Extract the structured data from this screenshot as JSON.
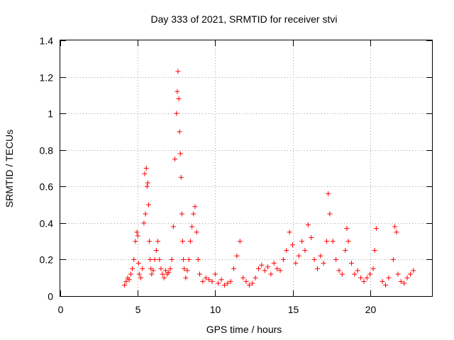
{
  "chart_data": {
    "type": "scatter",
    "title": "Day 333 of 2021, SRMTID for receiver stvi",
    "xlabel": "GPS time / hours",
    "ylabel": "SRMTID / TECUs",
    "xlim": [
      0,
      24
    ],
    "ylim": [
      0,
      1.4
    ],
    "xticks": [
      0,
      5,
      10,
      15,
      20
    ],
    "xtick_labels": [
      "0",
      "5",
      "10",
      "15",
      "20"
    ],
    "yticks": [
      0,
      0.2,
      0.4,
      0.6,
      0.8,
      1.0,
      1.2,
      1.4
    ],
    "ytick_labels": [
      "0",
      "0.2",
      "0.4",
      "0.6",
      "0.8",
      "1",
      "1.2",
      "1.4"
    ],
    "grid": true,
    "marker": "+",
    "color": "#ff0000",
    "series": [
      {
        "name": "SRMTID",
        "x": [
          4.15,
          4.25,
          4.35,
          4.45,
          4.55,
          4.65,
          4.75,
          4.85,
          4.95,
          5.0,
          5.05,
          5.1,
          5.2,
          5.3,
          5.4,
          5.45,
          5.5,
          5.55,
          5.6,
          5.65,
          5.7,
          5.75,
          5.8,
          5.85,
          5.9,
          6.0,
          6.1,
          6.2,
          6.3,
          6.4,
          6.5,
          6.6,
          6.7,
          6.8,
          6.9,
          7.0,
          7.1,
          7.2,
          7.3,
          7.4,
          7.5,
          7.55,
          7.6,
          7.65,
          7.7,
          7.75,
          7.8,
          7.85,
          7.9,
          7.95,
          8.0,
          8.1,
          8.2,
          8.3,
          8.4,
          8.5,
          8.6,
          8.7,
          8.8,
          8.9,
          9.0,
          9.2,
          9.4,
          9.6,
          9.8,
          10.0,
          10.2,
          10.4,
          10.6,
          10.8,
          11.0,
          11.2,
          11.4,
          11.6,
          11.8,
          12.0,
          12.2,
          12.4,
          12.6,
          12.8,
          13.0,
          13.2,
          13.4,
          13.6,
          13.8,
          14.0,
          14.2,
          14.4,
          14.6,
          14.8,
          15.0,
          15.2,
          15.4,
          15.6,
          15.8,
          16.0,
          16.2,
          16.4,
          16.6,
          16.8,
          17.0,
          17.2,
          17.3,
          17.4,
          17.6,
          17.8,
          18.0,
          18.2,
          18.4,
          18.5,
          18.6,
          18.8,
          19.0,
          19.2,
          19.4,
          19.6,
          19.8,
          20.0,
          20.2,
          20.3,
          20.4,
          20.8,
          21.0,
          21.2,
          21.5,
          21.6,
          21.7,
          21.8,
          22.0,
          22.2,
          22.4,
          22.6,
          22.8
        ],
        "y": [
          0.06,
          0.08,
          0.1,
          0.09,
          0.12,
          0.15,
          0.2,
          0.3,
          0.35,
          0.33,
          0.18,
          0.12,
          0.1,
          0.15,
          0.4,
          0.67,
          0.45,
          0.7,
          0.6,
          0.62,
          0.5,
          0.3,
          0.2,
          0.15,
          0.12,
          0.14,
          0.2,
          0.25,
          0.3,
          0.2,
          0.15,
          0.12,
          0.1,
          0.14,
          0.12,
          0.13,
          0.15,
          0.2,
          0.38,
          0.75,
          1.0,
          1.12,
          1.23,
          1.08,
          0.9,
          0.78,
          0.65,
          0.45,
          0.3,
          0.2,
          0.15,
          0.1,
          0.14,
          0.2,
          0.3,
          0.38,
          0.45,
          0.49,
          0.35,
          0.2,
          0.12,
          0.08,
          0.1,
          0.09,
          0.08,
          0.12,
          0.07,
          0.09,
          0.06,
          0.07,
          0.08,
          0.15,
          0.22,
          0.3,
          0.1,
          0.08,
          0.06,
          0.07,
          0.1,
          0.15,
          0.17,
          0.14,
          0.16,
          0.12,
          0.18,
          0.15,
          0.14,
          0.2,
          0.25,
          0.35,
          0.28,
          0.18,
          0.22,
          0.3,
          0.25,
          0.39,
          0.32,
          0.2,
          0.15,
          0.22,
          0.18,
          0.3,
          0.56,
          0.45,
          0.3,
          0.2,
          0.14,
          0.12,
          0.25,
          0.37,
          0.3,
          0.18,
          0.12,
          0.14,
          0.1,
          0.08,
          0.1,
          0.12,
          0.15,
          0.25,
          0.37,
          0.08,
          0.06,
          0.1,
          0.2,
          0.38,
          0.35,
          0.12,
          0.08,
          0.07,
          0.1,
          0.12,
          0.14
        ]
      }
    ]
  }
}
